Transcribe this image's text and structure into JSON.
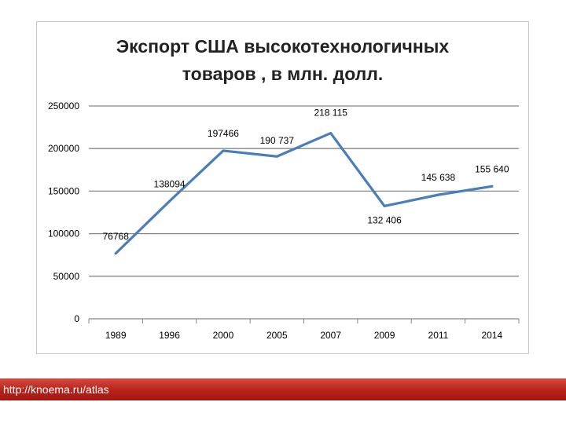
{
  "chart_data": {
    "type": "line",
    "title_lines": [
      "Экспорт США высокотехнологичных",
      "товаров , в млн. долл."
    ],
    "categories": [
      "1989",
      "1996",
      "2000",
      "2005",
      "2007",
      "2009",
      "2011",
      "2014"
    ],
    "series": [
      {
        "values": [
          76768,
          138094,
          197466,
          190737,
          218115,
          132406,
          145638,
          155640
        ],
        "labels": [
          "76768",
          "138094",
          "197466",
          "190 737",
          "218 115",
          "132 406",
          "145 638",
          "155 640"
        ]
      }
    ],
    "ylim": [
      0,
      250000
    ],
    "yticks": [
      0,
      50000,
      100000,
      150000,
      200000,
      250000
    ],
    "ytick_labels": [
      "0",
      "50000",
      "100000",
      "150000",
      "200000",
      "250000"
    ],
    "grid": true,
    "legend": "none",
    "line_color": "#4a7ebb",
    "grid_color": "#878787"
  },
  "footer": {
    "url": "http://knoema.ru/atlas"
  }
}
